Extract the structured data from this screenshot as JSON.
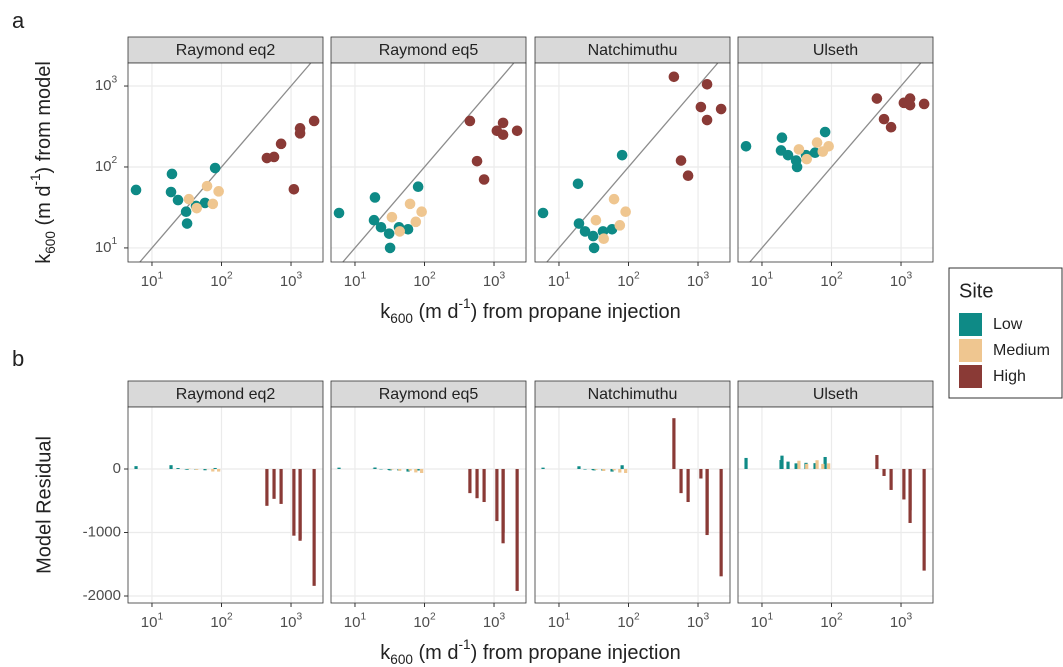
{
  "chart_data": [
    {
      "type": "scatter",
      "panel_label": "a",
      "x_label": {
        "base": "k",
        "sub": "600",
        "mid": " (m d",
        "sup": "-1",
        "tail": ") from propane injection"
      },
      "y_label": {
        "base": "k",
        "sub": "600",
        "mid": " (m d",
        "sup": "-1",
        "tail": ") from model"
      },
      "x_log": true,
      "y_log": true,
      "grid": true,
      "identity_line": true,
      "xlim": [
        4.52,
        2884
      ],
      "ylim": [
        6.7,
        1925
      ],
      "xticks": [
        {
          "value": 10,
          "label": {
            "base": "10",
            "sup": "1"
          }
        },
        {
          "value": 100,
          "label": {
            "base": "10",
            "sup": "2"
          }
        },
        {
          "value": 1000,
          "label": {
            "base": "10",
            "sup": "3"
          }
        }
      ],
      "yticks": [
        {
          "value": 10,
          "label": {
            "base": "10",
            "sup": "1"
          }
        },
        {
          "value": 100,
          "label": {
            "base": "10",
            "sup": "2"
          }
        },
        {
          "value": 1000,
          "label": {
            "base": "10",
            "sup": "3"
          }
        }
      ],
      "legend": {
        "title": "Site",
        "position": "right"
      },
      "groups": [
        {
          "name": "Low",
          "color": "#0e8a86",
          "x": [
            5.9,
            19.4,
            18.8,
            23.7,
            31,
            32,
            43,
            58,
            81
          ]
        },
        {
          "name": "Medium",
          "color": "#efc690",
          "x": [
            34,
            44,
            62,
            75,
            91
          ]
        },
        {
          "name": "High",
          "color": "#8a3a36",
          "x": [
            450,
            570,
            720,
            1100,
            1350,
            1350,
            2150
          ]
        }
      ],
      "facets": [
        {
          "title": "Raymond eq2",
          "values": [
            [
              52,
              82,
              49,
              39,
              28,
              20,
              33,
              36,
              97
            ],
            [
              40,
              31,
              58,
              35,
              50
            ],
            [
              129,
              133,
              193,
              53,
              300,
              260,
              370
            ]
          ]
        },
        {
          "title": "Raymond eq5",
          "values": [
            [
              27,
              42,
              22,
              18,
              15,
              10,
              18,
              17,
              57
            ],
            [
              24,
              16,
              35,
              21,
              28
            ],
            [
              370,
              118,
              70,
              280,
              350,
              250,
              280
            ]
          ]
        },
        {
          "title": "Natchimuthu",
          "values": [
            [
              27,
              20,
              62,
              16,
              14,
              10,
              16,
              17,
              140
            ],
            [
              22,
              13,
              40,
              19,
              28
            ],
            [
              1300,
              120,
              78,
              550,
              1050,
              380,
              520
            ]
          ]
        },
        {
          "title": "Ulseth",
          "values": [
            [
              180,
              230,
              160,
              140,
              120,
              100,
              140,
              150,
              270
            ],
            [
              165,
              125,
              200,
              155,
              180
            ],
            [
              700,
              390,
              310,
              620,
              700,
              580,
              600
            ]
          ]
        }
      ]
    },
    {
      "type": "bar",
      "panel_label": "b",
      "x_label": {
        "base": "k",
        "sub": "600",
        "mid": " (m d",
        "sup": "-1",
        "tail": ") from propane injection"
      },
      "y_label": "Model Residual",
      "x_log": true,
      "grid": true,
      "xlim": [
        4.52,
        2884
      ],
      "ylim": [
        -2110,
        976
      ],
      "xticks": [
        {
          "value": 10,
          "label": {
            "base": "10",
            "sup": "1"
          }
        },
        {
          "value": 100,
          "label": {
            "base": "10",
            "sup": "2"
          }
        },
        {
          "value": 1000,
          "label": {
            "base": "10",
            "sup": "3"
          }
        }
      ],
      "yticks": [
        -2000,
        -1000,
        0
      ],
      "facets": [
        {
          "title": "Raymond eq2",
          "values": [
            [
              45,
              0,
              60,
              15,
              -5,
              -12,
              -10,
              -20,
              16
            ],
            [
              6,
              -13,
              -4,
              -40,
              -41
            ],
            [
              -580,
              -470,
              -550,
              -1050,
              -1100,
              -1130,
              -1840
            ]
          ]
        },
        {
          "title": "Raymond eq5",
          "values": [
            [
              21,
              23,
              3,
              -6,
              -16,
              -22,
              -25,
              -41,
              -24
            ],
            [
              -10,
              -28,
              -27,
              -54,
              -63
            ],
            [
              -380,
              -460,
              -520,
              -820,
              -1000,
              -1170,
              -1920
            ]
          ]
        },
        {
          "title": "Natchimuthu",
          "values": [
            [
              21,
              43,
              1,
              -8,
              -17,
              -22,
              -27,
              -41,
              59
            ],
            [
              -12,
              -31,
              -22,
              -56,
              -63
            ],
            [
              800,
              -380,
              -520,
              -150,
              -1040,
              -1000,
              -1690
            ]
          ]
        },
        {
          "title": "Ulseth",
          "values": [
            [
              174,
              210,
              141,
              116,
              89,
              68,
              97,
              92,
              189
            ],
            [
              130,
              81,
              138,
              80,
              89
            ],
            [
              220,
              -110,
              -330,
              -480,
              -650,
              -850,
              -1600
            ]
          ]
        }
      ]
    }
  ]
}
